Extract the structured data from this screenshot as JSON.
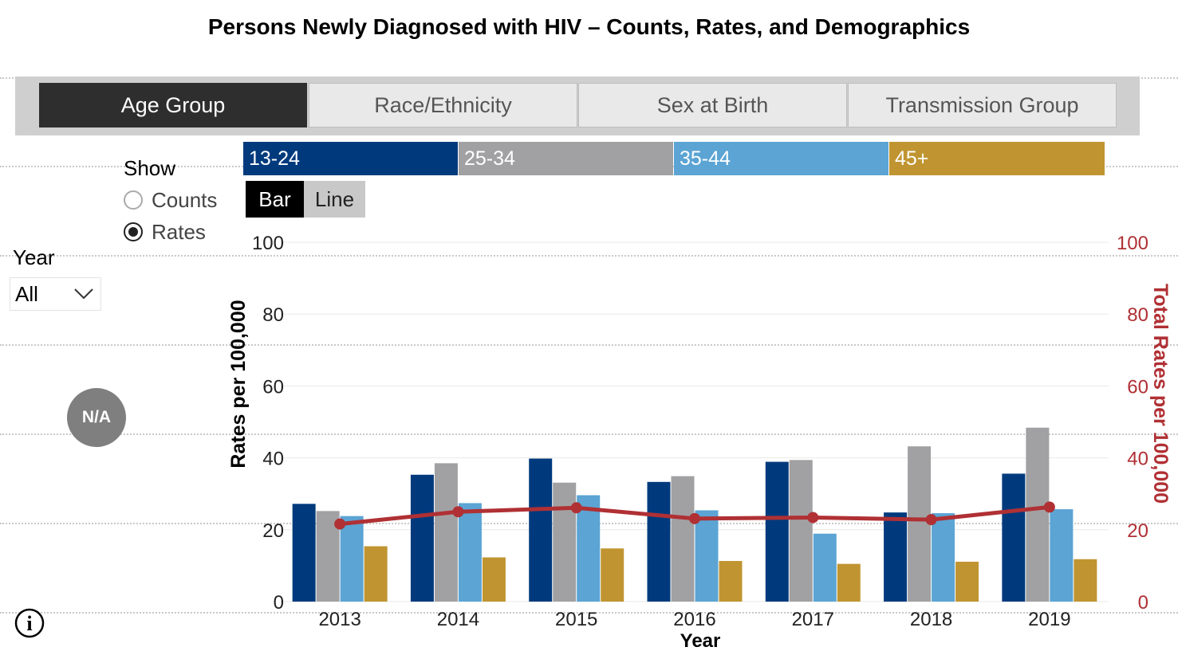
{
  "title": "Persons Newly Diagnosed with HIV – Counts, Rates, and Demographics",
  "tabs": [
    {
      "label": "Age Group",
      "active": true
    },
    {
      "label": "Race/Ethnicity",
      "active": false
    },
    {
      "label": "Sex at Birth",
      "active": false
    },
    {
      "label": "Transmission Group",
      "active": false
    }
  ],
  "legend": [
    {
      "label": "13-24",
      "color": "#003a7d"
    },
    {
      "label": "25-34",
      "color": "#a1a1a3"
    },
    {
      "label": "35-44",
      "color": "#5ba4d4"
    },
    {
      "label": "45+",
      "color": "#c09531"
    }
  ],
  "chart_toggle": {
    "bar_label": "Bar",
    "line_label": "Line",
    "selected": "Bar"
  },
  "show": {
    "label": "Show",
    "options": [
      {
        "label": "Counts",
        "selected": false
      },
      {
        "label": "Rates",
        "selected": true
      }
    ]
  },
  "year_filter": {
    "label": "Year",
    "value": "All"
  },
  "badge": {
    "label": "N/A"
  },
  "info_icon": {
    "glyph": "i"
  },
  "chart_data": {
    "type": "bar",
    "categories": [
      "2013",
      "2014",
      "2015",
      "2016",
      "2017",
      "2018",
      "2019"
    ],
    "series": [
      {
        "name": "13-24",
        "color": "#003a7d",
        "values": [
          27.2,
          35.3,
          39.8,
          33.3,
          38.9,
          24.8,
          35.6
        ]
      },
      {
        "name": "25-34",
        "color": "#a1a1a3",
        "values": [
          25.2,
          38.5,
          33.1,
          34.9,
          39.4,
          43.2,
          48.4
        ]
      },
      {
        "name": "35-44",
        "color": "#5ba4d4",
        "values": [
          23.8,
          27.4,
          29.6,
          25.4,
          18.9,
          24.6,
          25.7
        ]
      },
      {
        "name": "45+",
        "color": "#c09531",
        "values": [
          15.4,
          12.3,
          14.8,
          11.3,
          10.5,
          11.1,
          11.8
        ]
      }
    ],
    "line_series": {
      "color": "#b03034",
      "values": [
        21.6,
        25.0,
        26.1,
        23.1,
        23.4,
        22.8,
        26.3
      ]
    },
    "xlabel": "Year",
    "ylabel": "Rates per 100,000",
    "y2label": "Total Rates per 100,000",
    "ylim": [
      0,
      100
    ],
    "y2lim": [
      0,
      100
    ],
    "yticks": [
      "0",
      "20",
      "40",
      "60",
      "80",
      "100"
    ],
    "y2ticks": [
      "0",
      "20",
      "40",
      "60",
      "80",
      "100"
    ],
    "grid": true,
    "y2color": "#b03034"
  }
}
